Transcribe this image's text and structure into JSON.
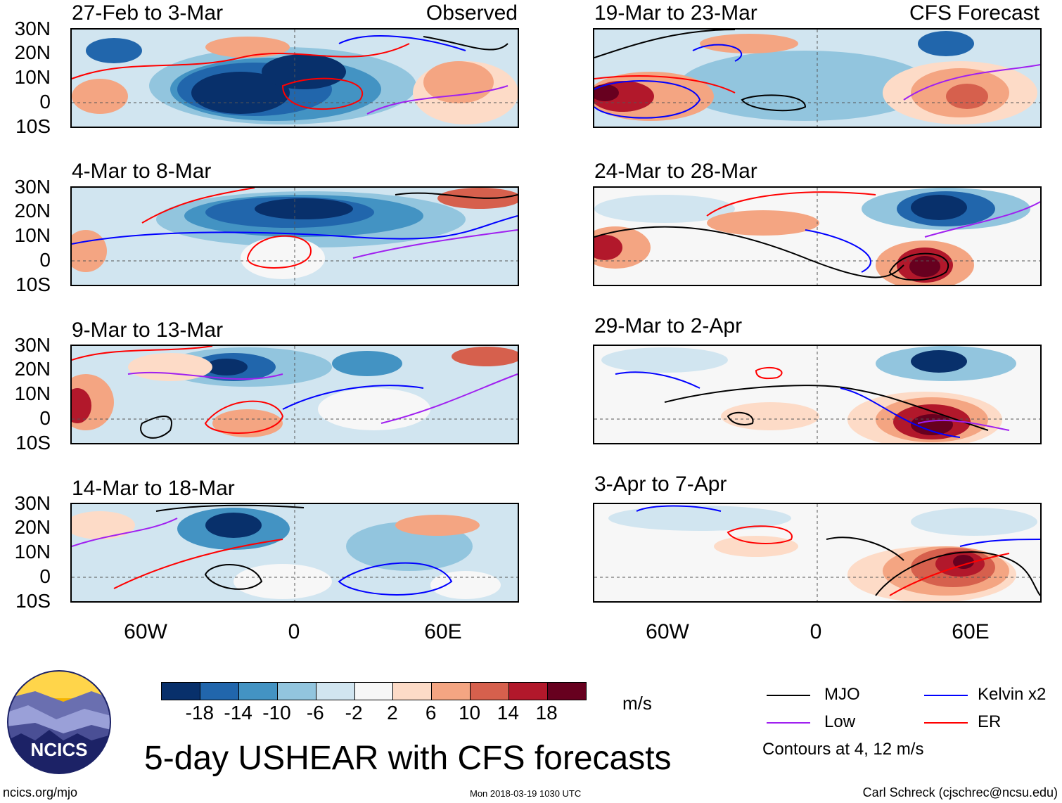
{
  "observed_label": "Observed",
  "forecast_label": "CFS Forecast",
  "lat_labels": [
    "30N",
    "20N",
    "10N",
    "0",
    "10S"
  ],
  "lon_labels": [
    "60W",
    "0",
    "60E"
  ],
  "panels_left": [
    {
      "title": "27-Feb to 3-Mar"
    },
    {
      "title": "4-Mar to 8-Mar"
    },
    {
      "title": "9-Mar to 13-Mar"
    },
    {
      "title": "14-Mar to 18-Mar"
    }
  ],
  "panels_right": [
    {
      "title": "19-Mar to 23-Mar"
    },
    {
      "title": "24-Mar to 28-Mar"
    },
    {
      "title": "29-Mar to 2-Apr"
    },
    {
      "title": "3-Apr to 7-Apr"
    }
  ],
  "colorbar": {
    "labels": [
      "-18",
      "-14",
      "-10",
      "-6",
      "-2",
      "2",
      "6",
      "10",
      "14",
      "18"
    ],
    "colors": [
      "#08306b",
      "#2166ac",
      "#4393c3",
      "#92c5de",
      "#d1e5f0",
      "#f7f7f7",
      "#fddbc7",
      "#f4a582",
      "#d6604d",
      "#b2182b",
      "#67001f"
    ],
    "units": "m/s"
  },
  "legend": {
    "items": [
      {
        "label": "MJO",
        "color": "#000000"
      },
      {
        "label": "Kelvin x2",
        "color": "#0000ff"
      },
      {
        "label": "Low",
        "color": "#a020f0"
      },
      {
        "label": "ER",
        "color": "#ff0000"
      }
    ],
    "contours_note": "Contours at 4, 12 m/s"
  },
  "logo_text": "NCICS",
  "main_title": "5-day USHEAR with CFS forecasts",
  "footer": {
    "left": "ncics.org/mjo",
    "center": "Mon 2018-03-19 1030 UTC",
    "right": "Carl Schreck (cjschrec@ncsu.edu)"
  }
}
